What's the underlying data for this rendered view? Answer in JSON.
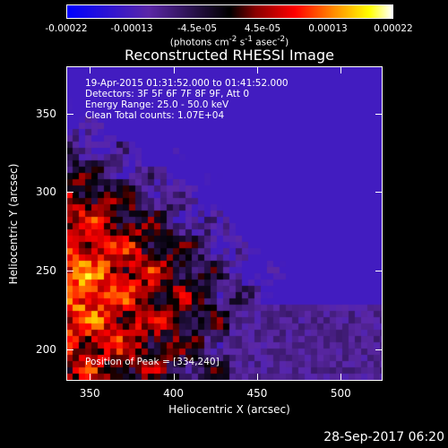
{
  "chart_data": {
    "type": "heatmap",
    "title": "Reconstructed RHESSI Image",
    "xlabel": "Heliocentric X (arcsec)",
    "ylabel": "Heliocentric Y (arcsec)",
    "xlim": [
      336,
      525
    ],
    "ylim": [
      180,
      380
    ],
    "xticks": [
      "350",
      "400",
      "450",
      "500"
    ],
    "xtick_values": [
      350,
      400,
      450,
      500
    ],
    "yticks": [
      "200",
      "250",
      "300",
      "350"
    ],
    "ytick_values": [
      200,
      250,
      300,
      350
    ],
    "colorbar": {
      "labels": [
        "-0.00022",
        "-0.00013",
        "-4.5e-05",
        "4.5e-05",
        "0.00013",
        "0.00022"
      ],
      "min": -0.00022,
      "max": 0.00022,
      "units_prefix": "(photons cm",
      "units_exp1": "-2",
      "units_mid": " s",
      "units_exp2": "-1",
      "units_mid2": " asec",
      "units_exp3": "-2",
      "units_suffix": ")"
    },
    "colors": [
      "#0000ff",
      "#5c28a8",
      "#000000",
      "#8b0000",
      "#ff0000",
      "#ff8c00",
      "#ffff00",
      "#ffffff"
    ],
    "peak_position": [
      334,
      240
    ]
  },
  "annotations": {
    "time_range": "19-Apr-2015 01:31:52.000 to 01:41:52.000",
    "detectors": "Detectors: 3F 5F 6F 7F 8F 9F, Att 0",
    "energy_range": "Energy Range: 25.0 - 50.0 keV",
    "method": "Clean     Total counts: 1.07E+04",
    "peak": "Position of Peak = [334,240]"
  },
  "footer": {
    "date": "28-Sep-2017 06:20"
  }
}
